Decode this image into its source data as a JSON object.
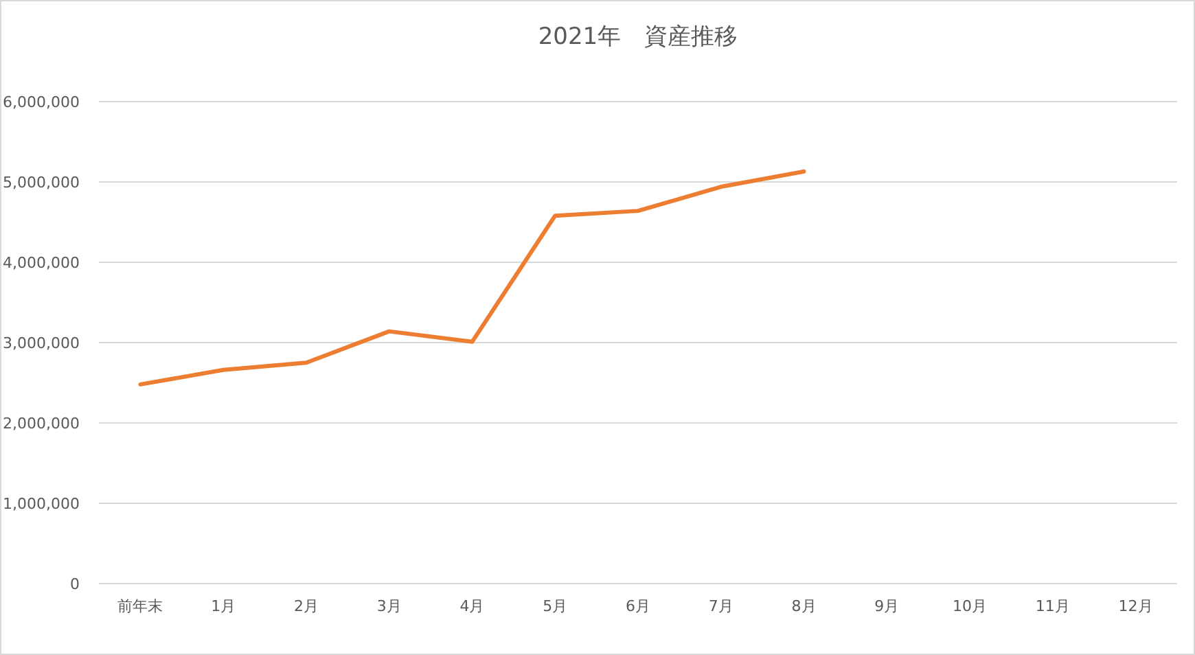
{
  "chart_data": {
    "type": "line",
    "title": "2021年　資産推移",
    "categories": [
      "前年末",
      "1月",
      "2月",
      "3月",
      "4月",
      "5月",
      "6月",
      "7月",
      "8月",
      "9月",
      "10月",
      "11月",
      "12月"
    ],
    "series": [
      {
        "color": "#ed7d31",
        "values": [
          2480000,
          2660000,
          2750000,
          3140000,
          3010000,
          4580000,
          4640000,
          4940000,
          5130000,
          null,
          null,
          null,
          null
        ]
      }
    ],
    "ylim": [
      0,
      6000000
    ],
    "yticks": [
      {
        "value": 0,
        "label": "0"
      },
      {
        "value": 1000000,
        "label": "1,000,000"
      },
      {
        "value": 2000000,
        "label": "2,000,000"
      },
      {
        "value": 3000000,
        "label": "3,000,000"
      },
      {
        "value": 4000000,
        "label": "4,000,000"
      },
      {
        "value": 5000000,
        "label": "5,000,000"
      },
      {
        "value": 6000000,
        "label": "6,000,000"
      }
    ],
    "grid": "y",
    "marker": "none",
    "line_style": "solid"
  }
}
